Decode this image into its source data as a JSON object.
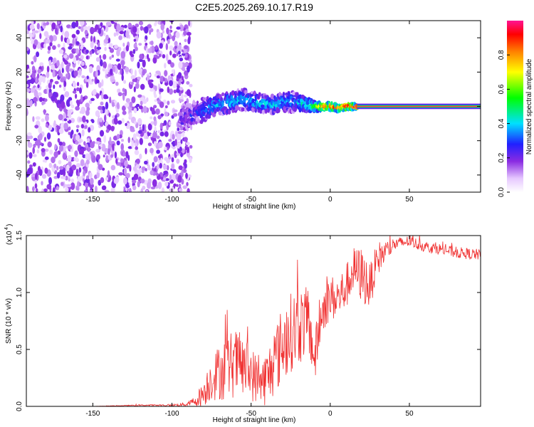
{
  "figure_title": "C2E5.2025.269.10.17.R19",
  "chart_data": [
    {
      "type": "heatmap",
      "title": "C2E5.2025.269.10.17.R19",
      "xlabel": "Height of straight line (km)",
      "ylabel": "Frequency (Hz)",
      "xlim": [
        -192,
        95
      ],
      "ylim": [
        -50,
        50
      ],
      "xticks": [
        -150,
        -100,
        -50,
        0,
        50
      ],
      "yticks": [
        -40,
        -20,
        0,
        20,
        40
      ],
      "colorbar": {
        "label": "Normalized spectral amplitude",
        "range": [
          0,
          1
        ],
        "ticks": [
          "0.0",
          "0.2",
          "0.4",
          "0.6",
          "0.8"
        ],
        "tick_values": [
          0.0,
          0.2,
          0.4,
          0.6,
          0.8
        ]
      },
      "noise_region_x": [
        -192,
        -88
      ],
      "ridge": {
        "x": [
          -95,
          -85,
          -75,
          -65,
          -55,
          -45,
          -35,
          -25,
          -15,
          -10,
          -5,
          0,
          5,
          10,
          17,
          95
        ],
        "freq": [
          -8,
          -4,
          0,
          2,
          4,
          2,
          1,
          3,
          1,
          0,
          0,
          0,
          -1,
          0,
          0,
          0
        ],
        "spread": [
          8,
          7,
          6,
          6,
          6,
          5,
          5,
          6,
          4,
          3,
          2,
          2,
          2,
          2,
          1,
          1
        ],
        "amplitude": [
          0.2,
          0.25,
          0.35,
          0.4,
          0.35,
          0.4,
          0.4,
          0.35,
          0.45,
          0.6,
          0.8,
          0.9,
          0.8,
          0.9,
          1.0,
          1.0
        ]
      }
    },
    {
      "type": "line",
      "xlabel": "Height of straight line (km)",
      "ylabel": "SNR (10 * v/v)",
      "scale_label": "(x10",
      "scale_exponent": "4",
      "xlim": [
        -192,
        95
      ],
      "ylim": [
        0,
        1.5
      ],
      "xticks": [
        -150,
        -100,
        -50,
        0,
        50
      ],
      "yticks": [
        0.0,
        0.5,
        1.0,
        1.5
      ],
      "ytick_labels": [
        "0.0",
        "0.5",
        "1.0",
        "1.5"
      ],
      "color": "#f03030",
      "series": [
        {
          "name": "SNR",
          "x": [
            -192,
            -150,
            -120,
            -100,
            -90,
            -85,
            -80,
            -75,
            -70,
            -65,
            -60,
            -55,
            -50,
            -45,
            -40,
            -35,
            -30,
            -25,
            -20,
            -15,
            -12,
            -10,
            -5,
            0,
            5,
            10,
            15,
            20,
            25,
            30,
            40,
            50,
            60,
            70,
            80,
            95
          ],
          "y": [
            0.0,
            0.0,
            0.01,
            0.01,
            0.02,
            0.05,
            0.12,
            0.25,
            0.3,
            0.35,
            0.38,
            0.35,
            0.3,
            0.2,
            0.25,
            0.4,
            0.55,
            0.65,
            0.7,
            0.75,
            0.6,
            0.4,
            0.85,
            0.95,
            0.95,
            1.05,
            1.2,
            1.15,
            1.05,
            1.3,
            1.42,
            1.45,
            1.4,
            1.38,
            1.35,
            1.33
          ],
          "noise": [
            0,
            0,
            0.005,
            0.01,
            0.02,
            0.05,
            0.12,
            0.2,
            0.25,
            0.3,
            0.3,
            0.28,
            0.25,
            0.2,
            0.25,
            0.3,
            0.35,
            0.35,
            0.35,
            0.3,
            0.25,
            0.25,
            0.2,
            0.2,
            0.2,
            0.2,
            0.2,
            0.25,
            0.2,
            0.15,
            0.06,
            0.05,
            0.05,
            0.05,
            0.05,
            0.05
          ]
        }
      ]
    }
  ]
}
